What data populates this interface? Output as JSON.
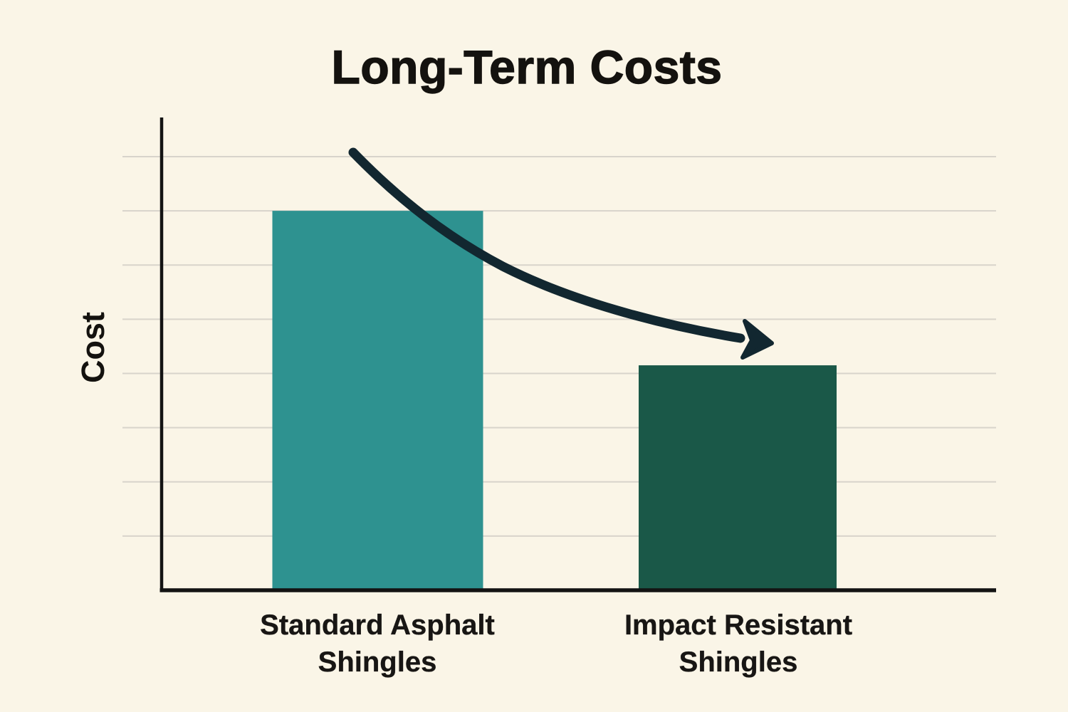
{
  "colors": {
    "background": "#FAF5E7",
    "axis": "#131313",
    "grid": "#D8D4CB",
    "text": "#14120F"
  },
  "chart_data": {
    "type": "bar",
    "title": "Long-Term Costs",
    "xlabel": "",
    "ylabel": "Cost",
    "categories": [
      "Standard Asphalt Shingles",
      "Impact Resistant Shingles"
    ],
    "values": [
      7,
      4.15
    ],
    "ylim": [
      0,
      8.7
    ],
    "yticks_labeled": false,
    "grid": {
      "visible": true,
      "step": 1,
      "count": 8
    },
    "legend": "none",
    "bar_colors": [
      "#2E9290",
      "#1A5848"
    ],
    "annotation": {
      "type": "arrow",
      "description": "curved arrow sweeping down from above the first bar to the top of the second bar, indicating decreasing long-term cost",
      "color": "#122730"
    }
  }
}
